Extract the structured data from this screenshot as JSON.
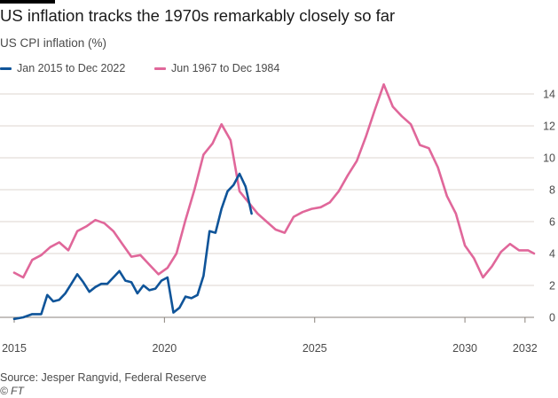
{
  "header": {
    "title": "US inflation tracks the 1970s remarkably closely so far",
    "subtitle": "US CPI inflation (%)"
  },
  "footer": {
    "source": "Source: Jesper Rangvid, Federal Reserve",
    "credit": "© FT"
  },
  "colors": {
    "series_2015": "#0f5499",
    "series_1967": "#e0679a",
    "grid": "#dcd6cf",
    "text": "#4a4a4a"
  },
  "chart_data": {
    "type": "line",
    "title": "US inflation tracks the 1970s remarkably closely so far",
    "ylabel": "US CPI inflation (%)",
    "xlim": [
      2015,
      2032.3
    ],
    "ylim": [
      -0.5,
      15
    ],
    "x_ticks": [
      2015,
      2020,
      2025,
      2030,
      2032
    ],
    "x_tick_labels": [
      "2015",
      "2020",
      "2025",
      "2030",
      "2032"
    ],
    "y_ticks": [
      0,
      2,
      4,
      6,
      8,
      10,
      12,
      14
    ],
    "y_tick_labels": [
      "0",
      "2",
      "4",
      "6",
      "8",
      "10",
      "12",
      "14"
    ],
    "grid": "horizontal",
    "y_axis_side": "right",
    "legend_position": "top-left",
    "series": [
      {
        "name": "Jan 2015 to Dec 2022",
        "color": "#0f5499",
        "x": [
          2015.0,
          2015.3,
          2015.6,
          2015.9,
          2016.1,
          2016.3,
          2016.5,
          2016.7,
          2016.9,
          2017.1,
          2017.3,
          2017.5,
          2017.7,
          2017.9,
          2018.1,
          2018.3,
          2018.5,
          2018.7,
          2018.9,
          2019.1,
          2019.3,
          2019.5,
          2019.7,
          2019.9,
          2020.1,
          2020.3,
          2020.5,
          2020.7,
          2020.9,
          2021.1,
          2021.3,
          2021.5,
          2021.7,
          2021.9,
          2022.1,
          2022.3,
          2022.5,
          2022.7,
          2022.9
        ],
        "y": [
          -0.1,
          0.0,
          0.2,
          0.2,
          1.4,
          1.0,
          1.1,
          1.5,
          2.1,
          2.7,
          2.2,
          1.6,
          1.9,
          2.1,
          2.1,
          2.5,
          2.9,
          2.3,
          2.2,
          1.5,
          2.0,
          1.7,
          1.8,
          2.3,
          2.5,
          0.3,
          0.6,
          1.3,
          1.2,
          1.4,
          2.6,
          5.4,
          5.3,
          6.8,
          7.9,
          8.3,
          9.0,
          8.2,
          6.5
        ]
      },
      {
        "name": "Jun 1967 to Dec 1984",
        "color": "#e0679a",
        "x": [
          2015.0,
          2015.3,
          2015.6,
          2015.9,
          2016.2,
          2016.5,
          2016.8,
          2017.1,
          2017.4,
          2017.7,
          2018.0,
          2018.3,
          2018.6,
          2018.9,
          2019.2,
          2019.5,
          2019.8,
          2020.1,
          2020.4,
          2020.7,
          2021.0,
          2021.3,
          2021.6,
          2021.9,
          2022.2,
          2022.5,
          2022.8,
          2023.1,
          2023.4,
          2023.7,
          2024.0,
          2024.3,
          2024.6,
          2024.9,
          2025.2,
          2025.5,
          2025.8,
          2026.1,
          2026.4,
          2026.7,
          2027.0,
          2027.3,
          2027.6,
          2027.9,
          2028.2,
          2028.5,
          2028.8,
          2029.1,
          2029.4,
          2029.7,
          2030.0,
          2030.3,
          2030.6,
          2030.9,
          2031.2,
          2031.5,
          2031.8,
          2032.1,
          2032.3
        ],
        "y": [
          2.8,
          2.5,
          3.6,
          3.9,
          4.4,
          4.7,
          4.2,
          5.4,
          5.7,
          6.1,
          5.9,
          5.4,
          4.6,
          3.8,
          3.9,
          3.3,
          2.7,
          3.1,
          4.0,
          6.1,
          8.0,
          10.2,
          10.9,
          12.1,
          11.1,
          7.9,
          7.2,
          6.5,
          6.0,
          5.5,
          5.3,
          6.3,
          6.6,
          6.8,
          6.9,
          7.2,
          7.9,
          8.9,
          9.8,
          11.3,
          13.0,
          14.6,
          13.2,
          12.6,
          12.1,
          10.8,
          10.6,
          9.4,
          7.6,
          6.5,
          4.5,
          3.7,
          2.5,
          3.2,
          4.1,
          4.6,
          4.2,
          4.2,
          4.0
        ]
      }
    ]
  }
}
